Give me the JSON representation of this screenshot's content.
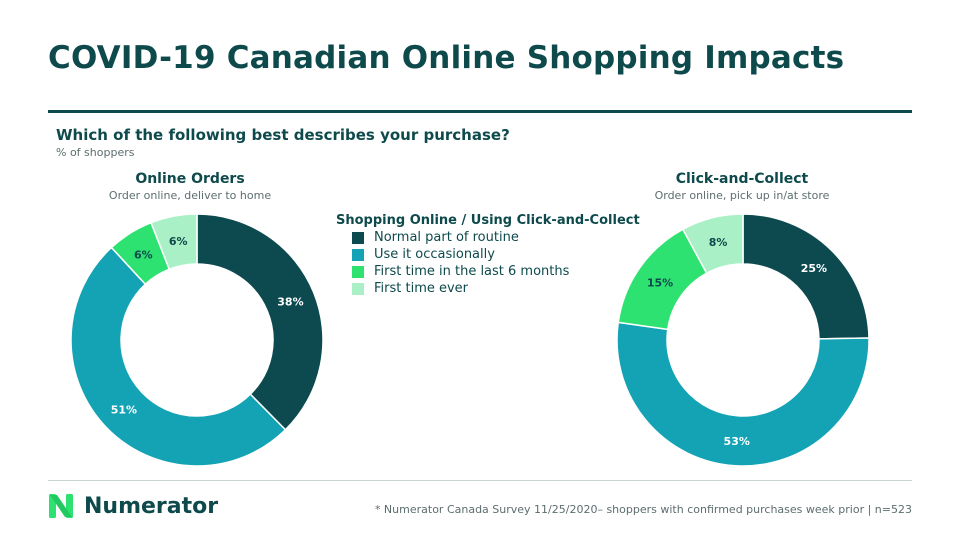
{
  "title": "COVID-19 Canadian Online Shopping Impacts",
  "question": "Which of the following best describes your purchase?",
  "subquestion": "% of shoppers",
  "legend": {
    "title": "Shopping Online / Using Click-and-Collect",
    "items": [
      {
        "label": "Normal part of routine",
        "color": "#0d4a50"
      },
      {
        "label": "Use it occasionally",
        "color": "#13a3b4"
      },
      {
        "label": "First time in the last 6 months",
        "color": "#2ee271"
      },
      {
        "label": "First time ever",
        "color": "#a9f0c7"
      }
    ]
  },
  "chart_data": [
    {
      "type": "pie",
      "title": "Online Orders",
      "subtitle": "Order online, deliver to home",
      "categories": [
        "Normal part of routine",
        "Use it occasionally",
        "First time in the last 6 months",
        "First time ever"
      ],
      "values": [
        38,
        51,
        6,
        6
      ],
      "data_labels": [
        "38%",
        "51%",
        "6%",
        "6%"
      ]
    },
    {
      "type": "pie",
      "title": "Click-and-Collect",
      "subtitle": "Order online, pick up in/at store",
      "categories": [
        "Normal part of routine",
        "Use it occasionally",
        "First time in the last 6 months",
        "First time ever"
      ],
      "values": [
        25,
        53,
        15,
        8
      ],
      "data_labels": [
        "25%",
        "53%",
        "15%",
        "8%"
      ]
    }
  ],
  "brand": {
    "name": "Numerator",
    "color": "#0e4a4c",
    "mark_color": "#2ee271"
  },
  "footnote": "* Numerator Canada Survey 11/25/2020– shoppers with confirmed purchases week prior | n=523"
}
